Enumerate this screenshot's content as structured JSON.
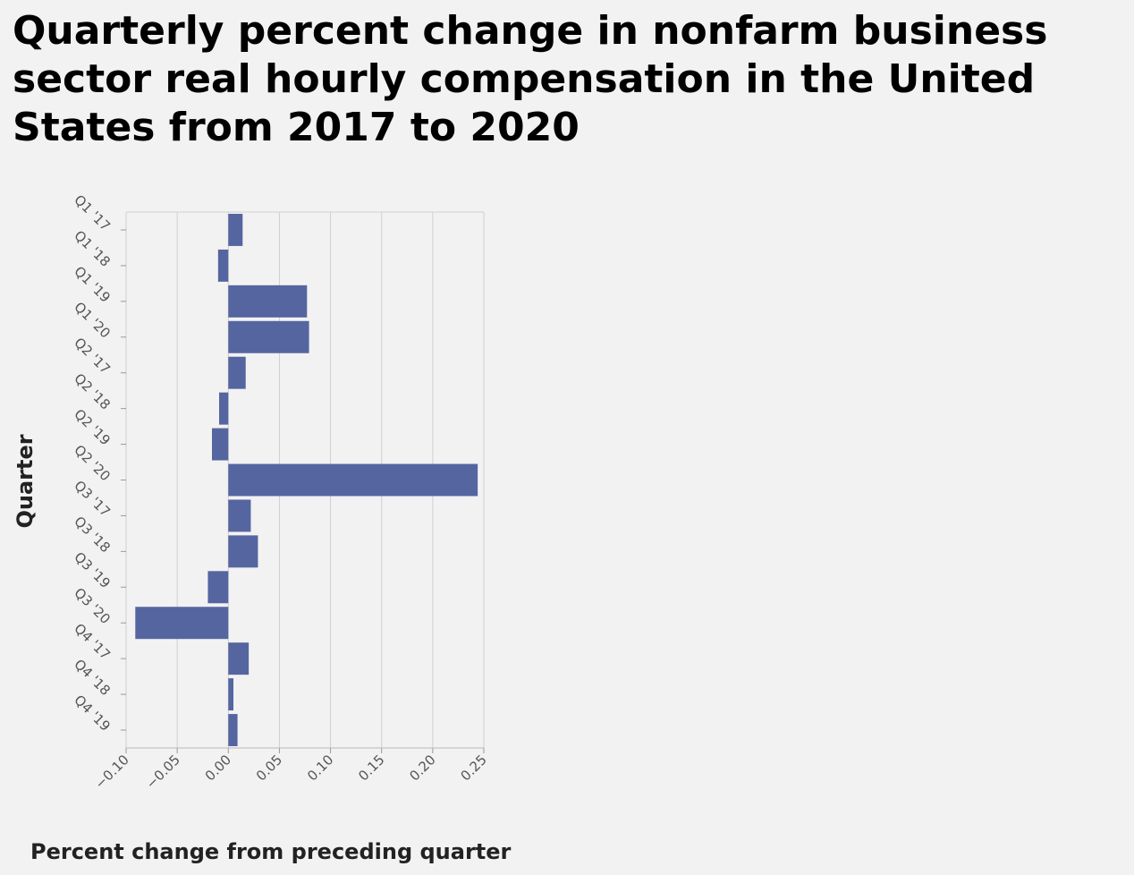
{
  "chart_data": {
    "type": "bar",
    "orientation": "horizontal",
    "title": "Quarterly percent change in nonfarm business sector real hourly compensation in the United States from 2017 to 2020",
    "xlabel": "Percent change from preceding quarter",
    "ylabel": "Quarter",
    "xlim": [
      -0.1,
      0.25
    ],
    "xticks": [
      -0.1,
      -0.05,
      0.0,
      0.05,
      0.1,
      0.15,
      0.2,
      0.25
    ],
    "xtick_labels": [
      "−0.10",
      "−0.05",
      "0.00",
      "0.05",
      "0.10",
      "0.15",
      "0.20",
      "0.25"
    ],
    "grid": true,
    "bar_color": "#5565a0",
    "categories": [
      "Q1 '17",
      "Q1 '18",
      "Q1 '19",
      "Q1 '20",
      "Q2 '17",
      "Q2 '18",
      "Q2 '19",
      "Q2 '20",
      "Q3 '17",
      "Q3 '18",
      "Q3 '19",
      "Q3 '20",
      "Q4 '17",
      "Q4 '18",
      "Q4 '19"
    ],
    "values": [
      0.014,
      -0.01,
      0.077,
      0.079,
      0.017,
      -0.009,
      -0.016,
      0.244,
      0.022,
      0.029,
      -0.02,
      -0.091,
      0.02,
      0.005,
      0.009
    ]
  }
}
